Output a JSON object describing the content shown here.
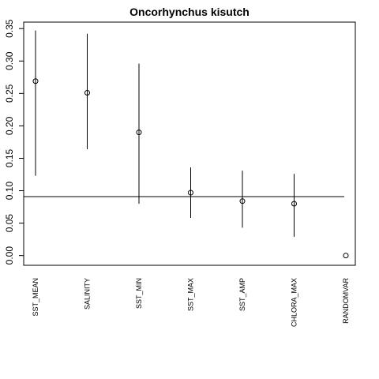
{
  "chart_data": {
    "type": "scatter",
    "title": "Oncorhynchus kisutch",
    "xlabel": "",
    "ylabel": "",
    "categories": [
      "SST_MEAN",
      "SALINITY",
      "SST_MIN",
      "SST_MAX",
      "SST_AMP",
      "CHLORA_MAX",
      "RANDOMVAR"
    ],
    "values": [
      0.269,
      0.251,
      0.19,
      0.097,
      0.084,
      0.08,
      0.0
    ],
    "lower": [
      0.123,
      0.164,
      0.08,
      0.058,
      0.043,
      0.029,
      null
    ],
    "upper": [
      0.347,
      0.342,
      0.296,
      0.136,
      0.131,
      0.126,
      null
    ],
    "reference_line": 0.091,
    "ylim": [
      -0.015,
      0.36
    ],
    "yticks": [
      "0.00",
      "0.05",
      "0.10",
      "0.15",
      "0.20",
      "0.25",
      "0.30",
      "0.35"
    ],
    "ytick_values": [
      0.0,
      0.05,
      0.1,
      0.15,
      0.2,
      0.25,
      0.3,
      0.35
    ],
    "grid": false,
    "legend": "none",
    "colors": {
      "marker": "#000000",
      "line": "#000000",
      "background": "#ffffff"
    }
  }
}
